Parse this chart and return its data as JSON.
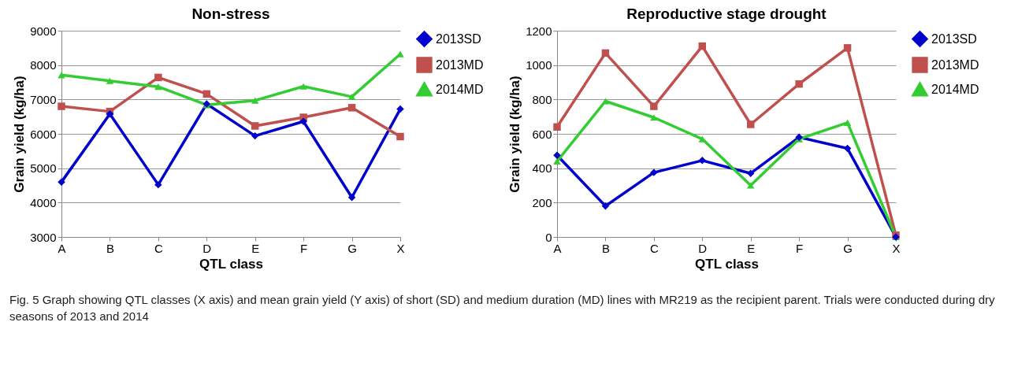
{
  "chart_data": [
    {
      "type": "line",
      "title": "Non-stress",
      "xlabel": "QTL class",
      "ylabel": "Grain yield (kg/ha)",
      "categories": [
        "A",
        "B",
        "C",
        "D",
        "E",
        "F",
        "G",
        "X"
      ],
      "ylim": [
        3000,
        9000
      ],
      "yticks": [
        3000,
        4000,
        5000,
        6000,
        7000,
        8000,
        9000
      ],
      "grid": "y",
      "legend": "right",
      "series": [
        {
          "name": "2013SD",
          "color": "#0000cc",
          "marker": "diamond",
          "values": [
            4600,
            6580,
            4520,
            6870,
            5940,
            6360,
            4150,
            6720
          ]
        },
        {
          "name": "2013MD",
          "color": "#c0504d",
          "marker": "square",
          "values": [
            6800,
            6650,
            7640,
            7160,
            6230,
            6480,
            6760,
            5920
          ]
        },
        {
          "name": "2014MD",
          "color": "#33cc33",
          "marker": "triangle",
          "values": [
            7710,
            7540,
            7370,
            6840,
            6970,
            7380,
            7080,
            8320
          ]
        }
      ],
      "annotations": [
        "Fig. 5 Graph showing QTL classes (X axis) and mean grain yield (Y axis) of short (SD) and medium duration (MD) lines with MR219 as the recipient parent. Trials were conducted during dry seasons of 2013 and 2014"
      ]
    },
    {
      "type": "line",
      "title": "Reproductive stage drought",
      "xlabel": "QTL class",
      "ylabel": "Grain yield (kg/ha)",
      "categories": [
        "A",
        "B",
        "C",
        "D",
        "E",
        "F",
        "G",
        "X"
      ],
      "ylim": [
        0,
        1200
      ],
      "yticks": [
        0,
        200,
        400,
        600,
        800,
        1000,
        1200
      ],
      "grid": "y",
      "legend": "right",
      "series": [
        {
          "name": "2013SD",
          "color": "#0000cc",
          "marker": "diamond",
          "values": [
            475,
            180,
            375,
            445,
            370,
            580,
            515,
            0
          ]
        },
        {
          "name": "2013MD",
          "color": "#c0504d",
          "marker": "square",
          "values": [
            640,
            1070,
            760,
            1110,
            655,
            890,
            1100,
            10
          ]
        },
        {
          "name": "2014MD",
          "color": "#33cc33",
          "marker": "triangle",
          "values": [
            440,
            790,
            695,
            570,
            300,
            570,
            665,
            0
          ]
        }
      ]
    }
  ]
}
